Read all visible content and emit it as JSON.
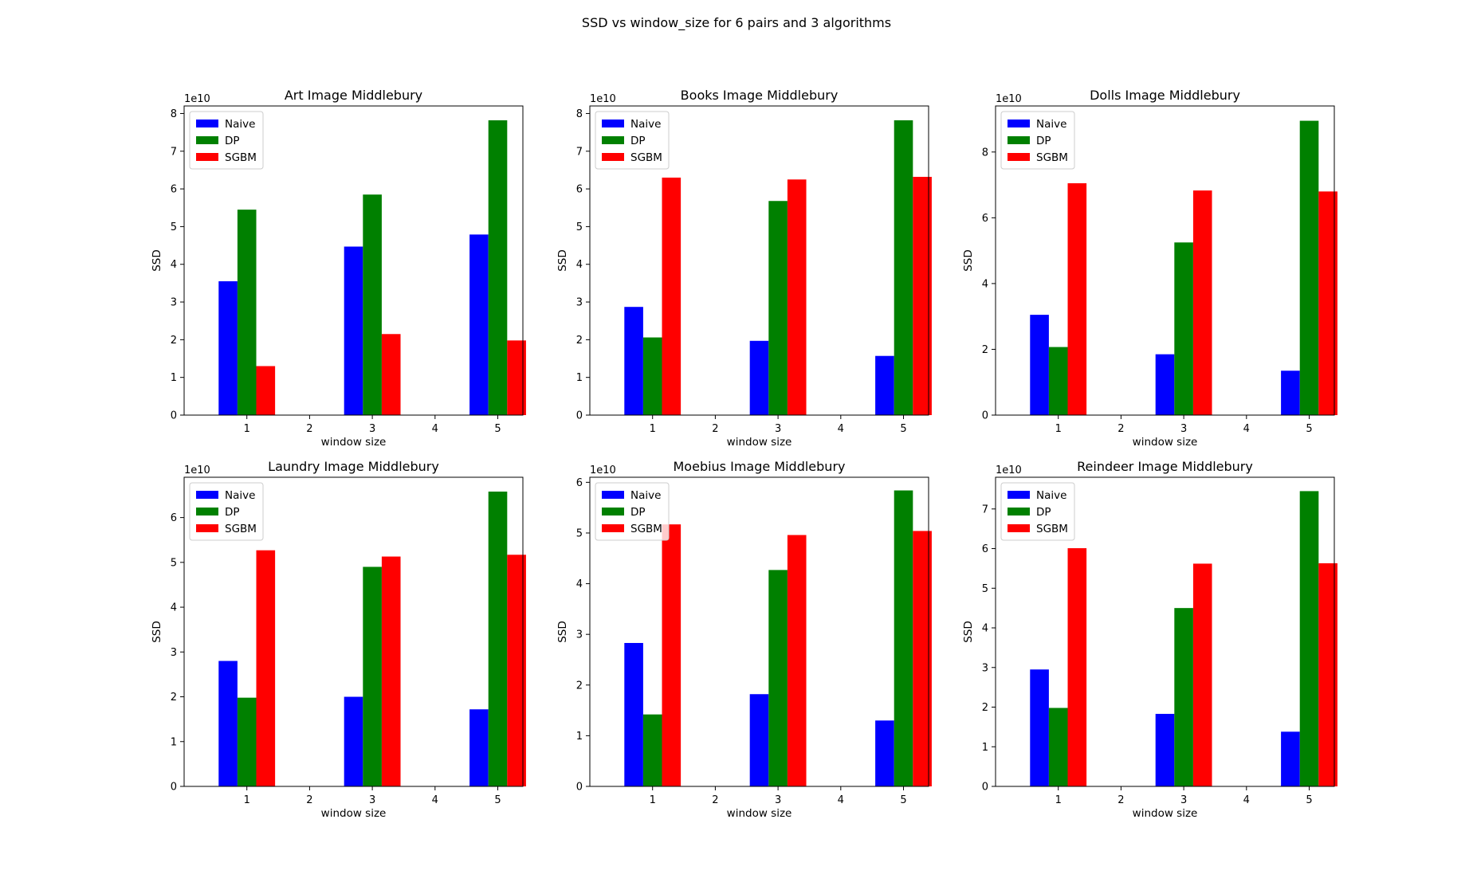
{
  "figure": {
    "suptitle": "SSD vs window_size for 6 pairs and 3 algorithms"
  },
  "colors": {
    "Naive": "#0000ff",
    "DP": "#008000",
    "SGBM": "#ff0000"
  },
  "chart_data": [
    {
      "type": "bar",
      "title": "Art Image Middlebury",
      "xlabel": "window size",
      "ylabel": "SSD",
      "offset_text": "1e10",
      "x": [
        1,
        3,
        5
      ],
      "xticks": [
        1,
        2,
        3,
        4,
        5
      ],
      "xlim": [
        0.0,
        5.4
      ],
      "ylim": [
        0,
        8.2
      ],
      "yticks": [
        0,
        1,
        2,
        3,
        4,
        5,
        6,
        7,
        8
      ],
      "legend": "upper-left",
      "series": [
        {
          "name": "Naive",
          "values": [
            3.55,
            4.47,
            4.79
          ]
        },
        {
          "name": "DP",
          "values": [
            5.45,
            5.85,
            7.82
          ]
        },
        {
          "name": "SGBM",
          "values": [
            1.3,
            2.15,
            1.98
          ]
        }
      ]
    },
    {
      "type": "bar",
      "title": "Books Image Middlebury",
      "xlabel": "window size",
      "ylabel": "SSD",
      "offset_text": "1e10",
      "x": [
        1,
        3,
        5
      ],
      "xticks": [
        1,
        2,
        3,
        4,
        5
      ],
      "xlim": [
        0.0,
        5.4
      ],
      "ylim": [
        0,
        8.2
      ],
      "yticks": [
        0,
        1,
        2,
        3,
        4,
        5,
        6,
        7,
        8
      ],
      "legend": "upper-left",
      "series": [
        {
          "name": "Naive",
          "values": [
            2.87,
            1.97,
            1.57
          ]
        },
        {
          "name": "DP",
          "values": [
            2.06,
            5.68,
            7.82
          ]
        },
        {
          "name": "SGBM",
          "values": [
            6.3,
            6.25,
            6.32
          ]
        }
      ]
    },
    {
      "type": "bar",
      "title": "Dolls Image Middlebury",
      "xlabel": "window size",
      "ylabel": "SSD",
      "offset_text": "1e10",
      "x": [
        1,
        3,
        5
      ],
      "xticks": [
        1,
        2,
        3,
        4,
        5
      ],
      "xlim": [
        0.0,
        5.4
      ],
      "ylim": [
        0,
        9.4
      ],
      "yticks": [
        0,
        2,
        4,
        6,
        8
      ],
      "legend": "upper-left",
      "series": [
        {
          "name": "Naive",
          "values": [
            3.05,
            1.85,
            1.35
          ]
        },
        {
          "name": "DP",
          "values": [
            2.07,
            5.25,
            8.95
          ]
        },
        {
          "name": "SGBM",
          "values": [
            7.05,
            6.83,
            6.8
          ]
        }
      ]
    },
    {
      "type": "bar",
      "title": "Laundry Image Middlebury",
      "xlabel": "window size",
      "ylabel": "SSD",
      "offset_text": "1e10",
      "x": [
        1,
        3,
        5
      ],
      "xticks": [
        1,
        2,
        3,
        4,
        5
      ],
      "xlim": [
        0.0,
        5.4
      ],
      "ylim": [
        0,
        6.9
      ],
      "yticks": [
        0,
        1,
        2,
        3,
        4,
        5,
        6
      ],
      "legend": "upper-left",
      "series": [
        {
          "name": "Naive",
          "values": [
            2.8,
            2.0,
            1.72
          ]
        },
        {
          "name": "DP",
          "values": [
            1.98,
            4.9,
            6.58
          ]
        },
        {
          "name": "SGBM",
          "values": [
            5.27,
            5.13,
            5.17
          ]
        }
      ]
    },
    {
      "type": "bar",
      "title": "Moebius Image Middlebury",
      "xlabel": "window size",
      "ylabel": "SSD",
      "offset_text": "1e10",
      "x": [
        1,
        3,
        5
      ],
      "xticks": [
        1,
        2,
        3,
        4,
        5
      ],
      "xlim": [
        0.0,
        5.4
      ],
      "ylim": [
        0,
        6.1
      ],
      "yticks": [
        0,
        1,
        2,
        3,
        4,
        5,
        6
      ],
      "legend": "upper-left",
      "series": [
        {
          "name": "Naive",
          "values": [
            2.83,
            1.82,
            1.3
          ]
        },
        {
          "name": "DP",
          "values": [
            1.42,
            4.27,
            5.84
          ]
        },
        {
          "name": "SGBM",
          "values": [
            5.17,
            4.96,
            5.04
          ]
        }
      ]
    },
    {
      "type": "bar",
      "title": "Reindeer Image Middlebury",
      "xlabel": "window size",
      "ylabel": "SSD",
      "offset_text": "1e10",
      "x": [
        1,
        3,
        5
      ],
      "xticks": [
        1,
        2,
        3,
        4,
        5
      ],
      "xlim": [
        0.0,
        5.4
      ],
      "ylim": [
        0,
        7.8
      ],
      "yticks": [
        0,
        1,
        2,
        3,
        4,
        5,
        6,
        7
      ],
      "legend": "upper-left",
      "series": [
        {
          "name": "Naive",
          "values": [
            2.95,
            1.83,
            1.38
          ]
        },
        {
          "name": "DP",
          "values": [
            1.98,
            4.5,
            7.45
          ]
        },
        {
          "name": "SGBM",
          "values": [
            6.01,
            5.62,
            5.63
          ]
        }
      ]
    }
  ]
}
